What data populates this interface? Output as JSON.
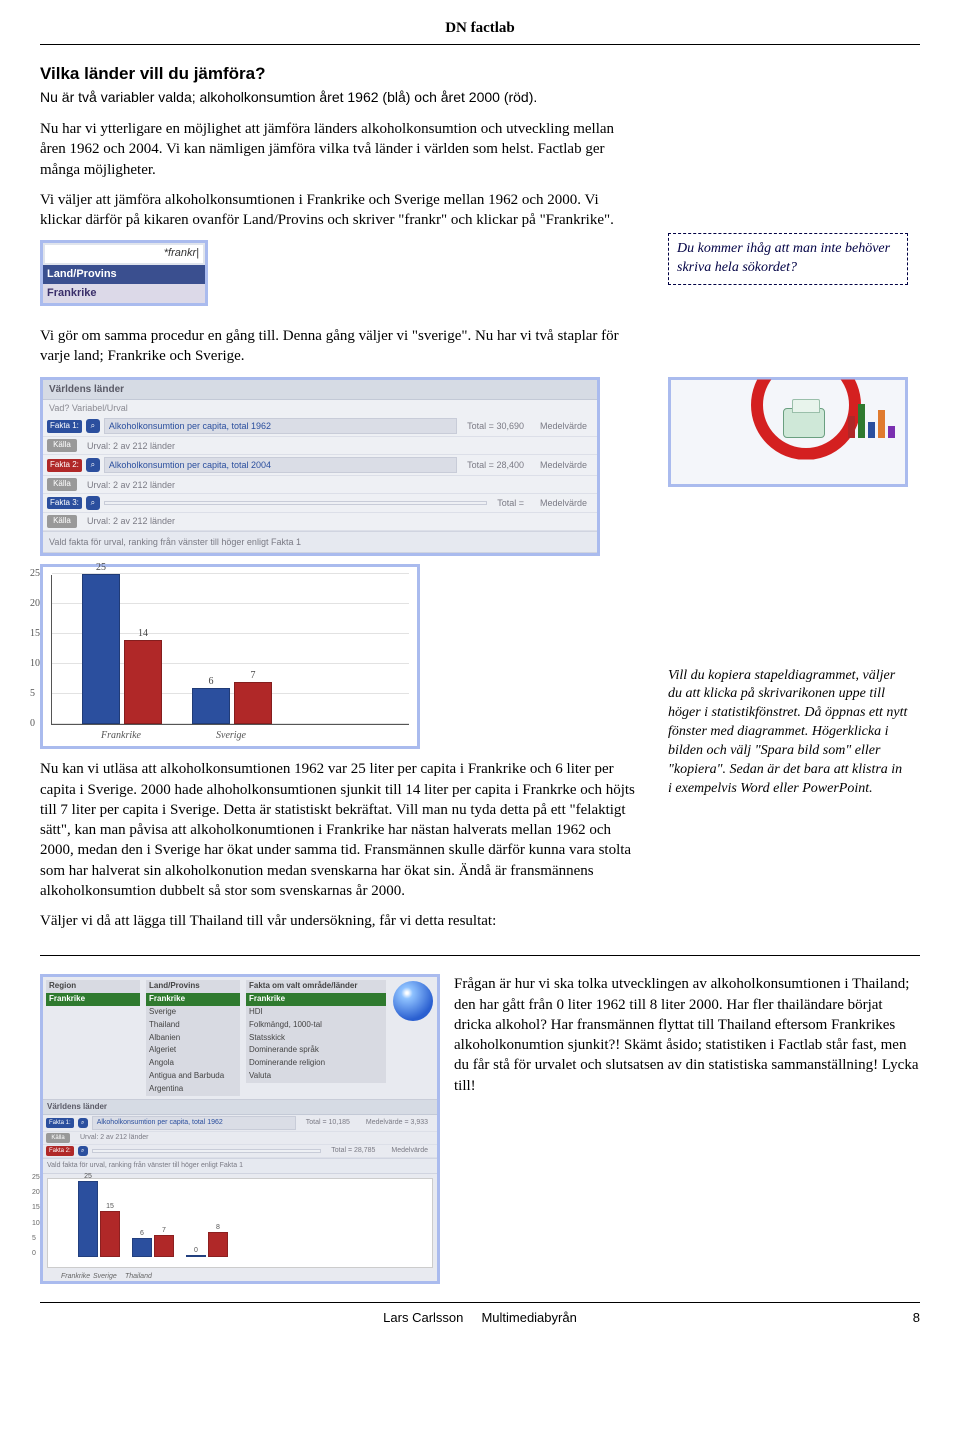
{
  "header": {
    "title": "DN factlab"
  },
  "section1": {
    "heading": "Vilka länder vill du jämföra?",
    "sub": "Nu är två variabler valda; alkoholkonsumtion året 1962 (blå) och året 2000 (röd).",
    "para1": "Nu har vi ytterligare en möjlighet att jämföra länders alkoholkonsumtion och utveckling mellan åren 1962 och 2004. Vi kan nämligen jämföra vilka två länder i världen som helst. Factlab ger många möjligheter.",
    "para2": "Vi väljer att jämföra alkoholkonsumtionen i Frankrike och Sverige mellan 1962 och 2000. Vi klickar därför på kikaren ovanför Land/Provins och skriver \"frankr\" och klickar på \"Frankrike\"."
  },
  "callout1": "Du kommer ihåg att man inte behöver skriva hela sökordet?",
  "search": {
    "value": "*frankr|",
    "row1": "Land/Provins",
    "row2": "Frankrike"
  },
  "section2": {
    "para": "Vi gör om samma procedur en gång till. Denna gång väljer vi \"sverige\". Nu har vi två staplar för varje land; Frankrike och Sverige."
  },
  "panel": {
    "title": "Världens länder",
    "sub": "Vad?   Variabel/Urval",
    "row1_badge": "Fakta 1:",
    "row1_src": "Källa",
    "row1_field": "Alkoholkonsumtion per capita, total 1962",
    "row1_total": "Total = 30,690",
    "row1_mean": "Medelvärde",
    "row_ur": "Urval: 2 av 212 länder",
    "row2_badge": "Fakta 2:",
    "row2_field": "Alkoholkonsumtion per capita, total 2004",
    "row2_total": "Total = 28,400",
    "row3_badge": "Fakta 3:",
    "row3_total": "Total =",
    "note": "Vald fakta för urval, ranking från vänster till höger enligt Fakta 1"
  },
  "chart": {
    "ymax": 25,
    "ystep": 5,
    "colors": {
      "y1962": "#2b4f9e",
      "y2000": "#b02828",
      "grid": "#e2e2e2"
    },
    "groups": [
      {
        "label": "Frankrike",
        "v1": 25,
        "v2": 14
      },
      {
        "label": "Sverige",
        "v1": 6,
        "v2": 7
      }
    ]
  },
  "section3": {
    "para": "Nu kan vi utläsa att alkoholkonsumtionen 1962 var 25 liter per capita i Frankrike och 6 liter per capita i Sverige. 2000 hade alhoholkonsumtionen sjunkit till 14 liter per capita i Frankrke och höjts till 7 liter per capita i Sverige. Detta är statistiskt bekräftat. Vill man nu tyda detta på ett \"felaktigt sätt\", kan man påvisa att alkoholkonumtionen i Frankrike har nästan halverats mellan 1962 och 2000, medan den i Sverige har ökat under samma tid. Fransmännen skulle därför kunna vara stolta som har halverat sin alkoholkonution medan svenskarna har ökat sin. Ändå är fransmännens alkoholkonsumtion dubbelt så stor som svenskarnas år 2000.",
    "para2": "Väljer vi då att lägga till Thailand till vår undersökning, får vi detta resultat:"
  },
  "callout2": "Vill du kopiera stapeldiagrammet, väljer du att klicka på skrivarikonen uppe till höger i statistikfönstret. Då öppnas ett nytt fönster med diagrammet. Högerklicka i bilden och välj \"Spara bild som\" eller \"kopiera\". Sedan är det bara att klistra in i exempelvis Word eller PowerPoint.",
  "thumb": {
    "left_title": "Region",
    "left_green": "Frankrike",
    "left_rows": [
      "Sverige",
      "Thailand",
      "Albanien",
      "Algeriet",
      "Angola",
      "Antigua and Barbuda",
      "Argentina"
    ],
    "mid_title": "Land/Provins",
    "right_title": "Fakta om valt område/länder",
    "right_rows": [
      "Frankrike",
      "HDI",
      "Folkmängd, 1000-tal",
      "Statsskick",
      "Dominerande språk",
      "Dominerande religion",
      "Valuta"
    ],
    "panel_title": "Världens länder",
    "row1_field": "Alkoholkonsumtion per capita, total 1962",
    "row1_total": "Total = 10,185",
    "row2_total": "Total = 28,785",
    "mean_small": "Medelvärde = 3,933",
    "urval3": "Urval: 2 av 212 länder"
  },
  "minichart": {
    "ymax": 25,
    "groups": [
      {
        "label": "Frankrike",
        "v1": 25,
        "v2": 15
      },
      {
        "label": "Sverige",
        "v1": 6,
        "v2": 7
      },
      {
        "label": "Thailand",
        "v1": 0,
        "v2": 8
      }
    ]
  },
  "section4": {
    "para": "Frågan är hur vi ska tolka utvecklingen av alkoholkonsumtionen i Thailand; den har gått från 0 liter 1962 till 8 liter 2000. Har fler thailändare börjat dricka alkohol? Har fransmännen flyttat till Thailand eftersom Frankrikes alkoholkonumtion sjunkit?! Skämt åsido; statistiken i Factlab står fast, men du får stå för urvalet och slutsatsen av din statistiska sammanställning! Lycka till!"
  },
  "footer": {
    "author": "Lars Carlsson",
    "org": "Multimediabyrån",
    "page": "8"
  },
  "minibars_colors": [
    "#b02828",
    "#2f7a2f",
    "#2b4f9e",
    "#e07b2f",
    "#7a2fb0"
  ],
  "minibars_heights": [
    22,
    34,
    16,
    28,
    12
  ]
}
